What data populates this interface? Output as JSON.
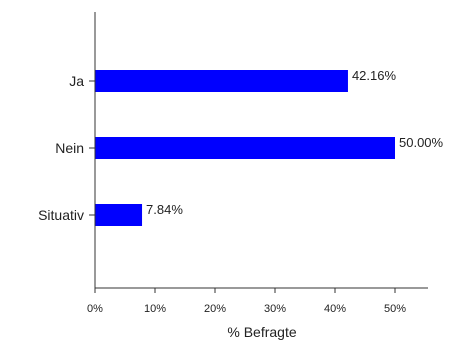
{
  "chart_data": {
    "type": "bar",
    "orientation": "horizontal",
    "categories": [
      "Ja",
      "Nein",
      "Situativ"
    ],
    "values": [
      42.16,
      50.0,
      7.84
    ],
    "value_labels": [
      "42.16%",
      "50.00%",
      "7.84%"
    ],
    "xlabel": "% Befragte",
    "ylabel": "",
    "xlim": [
      0,
      55
    ],
    "xticks": [
      0,
      10,
      20,
      30,
      40,
      50
    ],
    "xtick_labels": [
      "0%",
      "10%",
      "20%",
      "30%",
      "40%",
      "50%"
    ],
    "grid": false,
    "legend": "none",
    "bar_color": "#0000ff",
    "axis_color": "#333333",
    "text_color": "#222222"
  }
}
